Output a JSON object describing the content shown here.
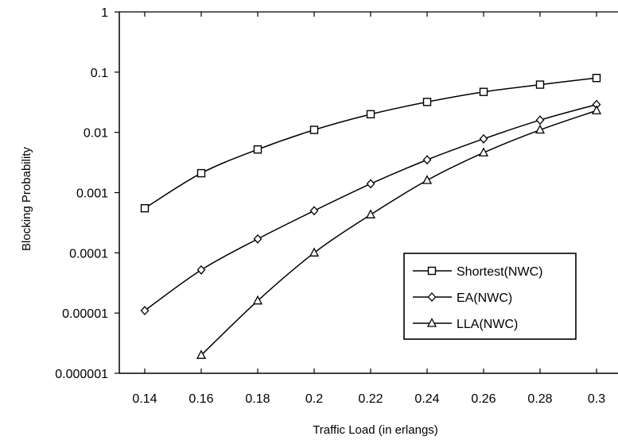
{
  "chart_data": {
    "type": "line",
    "title": "",
    "xlabel": "Traffic Load (in erlangs)",
    "ylabel": "Blocking Probability",
    "x": [
      0.14,
      0.16,
      0.18,
      0.2,
      0.22,
      0.24,
      0.26,
      0.28,
      0.3
    ],
    "x_tick_labels": [
      "0.14",
      "0.16",
      "0.18",
      "0.2",
      "0.22",
      "0.24",
      "0.26",
      "0.28",
      "0.3"
    ],
    "yscale": "log",
    "ylim": [
      1e-06,
      1
    ],
    "y_ticks": [
      1e-06,
      1e-05,
      0.0001,
      0.001,
      0.01,
      0.1,
      1
    ],
    "y_tick_labels": [
      "0.000001",
      "0.00001",
      "0.0001",
      "0.001",
      "0.01",
      "0.1",
      "1"
    ],
    "grid": false,
    "legend_position": "bottom-right",
    "series": [
      {
        "name": "Shortest(NWC)",
        "marker": "square",
        "x": [
          0.14,
          0.16,
          0.18,
          0.2,
          0.22,
          0.24,
          0.26,
          0.28,
          0.3
        ],
        "values": [
          0.00055,
          0.0021,
          0.0052,
          0.011,
          0.02,
          0.032,
          0.047,
          0.062,
          0.08
        ]
      },
      {
        "name": "EA(NWC)",
        "marker": "diamond",
        "x": [
          0.14,
          0.16,
          0.18,
          0.2,
          0.22,
          0.24,
          0.26,
          0.28,
          0.3
        ],
        "values": [
          1.1e-05,
          5.2e-05,
          0.00017,
          0.0005,
          0.0014,
          0.0035,
          0.0078,
          0.016,
          0.029
        ]
      },
      {
        "name": "LLA(NWC)",
        "marker": "triangle",
        "x": [
          0.16,
          0.18,
          0.2,
          0.22,
          0.24,
          0.26,
          0.28,
          0.3
        ],
        "values": [
          2e-06,
          1.6e-05,
          0.0001,
          0.00043,
          0.0016,
          0.0046,
          0.011,
          0.023
        ]
      }
    ]
  }
}
